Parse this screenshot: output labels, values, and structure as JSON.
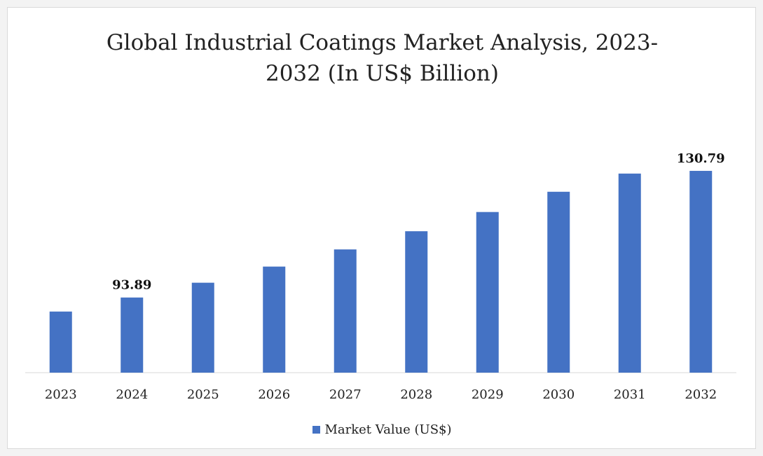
{
  "chart_data": {
    "type": "bar",
    "title_lines": [
      "Global Industrial Coatings Market Analysis, 2023-",
      "2032 (In US$ Billion)"
    ],
    "categories": [
      "2023",
      "2024",
      "2025",
      "2026",
      "2027",
      "2028",
      "2029",
      "2030",
      "2031",
      "2032"
    ],
    "series": [
      {
        "name": "Market Value (US$)",
        "values": [
          89.8,
          93.89,
          98.2,
          102.9,
          107.9,
          113.2,
          118.8,
          124.7,
          130.0,
          130.79
        ]
      }
    ],
    "data_labels": [
      {
        "category": "2024",
        "text": "93.89"
      },
      {
        "category": "2032",
        "text": "130.79"
      }
    ],
    "legend_position": "bottom",
    "grid": false,
    "color": "#4472c4"
  }
}
